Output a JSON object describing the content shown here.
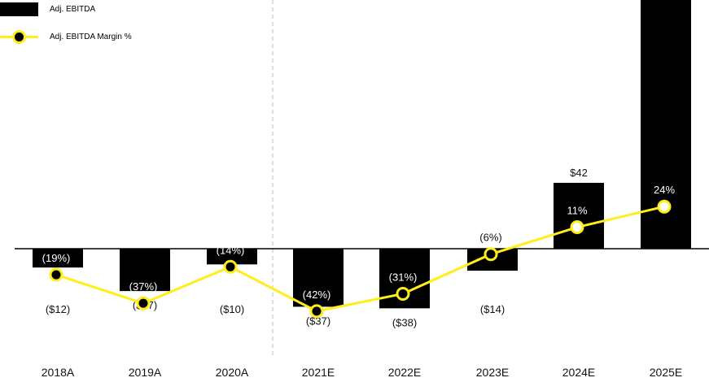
{
  "legend": {
    "bar_label": "Adj. EBITDA",
    "line_label": "Adj. EBITDA Margin %"
  },
  "colors": {
    "bar": "#000000",
    "line": "#ffee1a",
    "divider": "#bbbbbb"
  },
  "chart_data": {
    "type": "bar",
    "categories": [
      "2018A",
      "2019A",
      "2020A",
      "2021E",
      "2022E",
      "2023E",
      "2024E",
      "2025E"
    ],
    "series": [
      {
        "name": "Adj. EBITDA",
        "type": "bar",
        "values": [
          -12,
          -27,
          -10,
          -37,
          -38,
          -14,
          42,
          160
        ],
        "labels": [
          "($12)",
          "($27)",
          "($10)",
          "($37)",
          "($38)",
          "($14)",
          "$42",
          ""
        ]
      },
      {
        "name": "Adj. EBITDA Margin %",
        "type": "line",
        "values": [
          -19,
          -37,
          -14,
          -42,
          -31,
          -6,
          11,
          24
        ],
        "labels": [
          "(19%)",
          "(37%)",
          "(14%)",
          "(42%)",
          "(31%)",
          "(6%)",
          "11%",
          "24%"
        ]
      }
    ],
    "title": "",
    "xlabel": "",
    "ylabel": "",
    "legend_position": "top-left",
    "divider_between": [
      "2020A",
      "2021E"
    ],
    "grid": false
  }
}
